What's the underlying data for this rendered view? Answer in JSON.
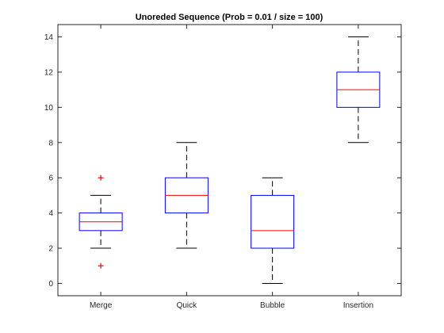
{
  "chart_data": {
    "type": "boxplot",
    "title": "Unoreded Sequence (Prob = 0.01 / size = 100)",
    "xlabel": "",
    "ylabel": "",
    "categories": [
      "Merge",
      "Quick",
      "Bubble",
      "Insertion"
    ],
    "ylim": [
      -0.7,
      14.7
    ],
    "yticks": [
      "0",
      "2",
      "4",
      "6",
      "8",
      "10",
      "12",
      "14"
    ],
    "grid": false,
    "boxes": [
      {
        "category": "Merge",
        "whisker_low": 2,
        "q1": 3,
        "median": 3.5,
        "q3": 4,
        "whisker_high": 5,
        "outliers": [
          1,
          6
        ]
      },
      {
        "category": "Quick",
        "whisker_low": 2,
        "q1": 4,
        "median": 5,
        "q3": 6,
        "whisker_high": 8,
        "outliers": []
      },
      {
        "category": "Bubble",
        "whisker_low": 0,
        "q1": 2,
        "median": 3,
        "q3": 5,
        "whisker_high": 6,
        "outliers": []
      },
      {
        "category": "Insertion",
        "whisker_low": 8,
        "q1": 10,
        "median": 11,
        "q3": 12,
        "whisker_high": 14,
        "outliers": []
      }
    ],
    "colors": {
      "box": "#0000ff",
      "median": "#ff0000",
      "whisker": "#000000",
      "outlier": "#ff0000",
      "axes": "#262626"
    }
  }
}
